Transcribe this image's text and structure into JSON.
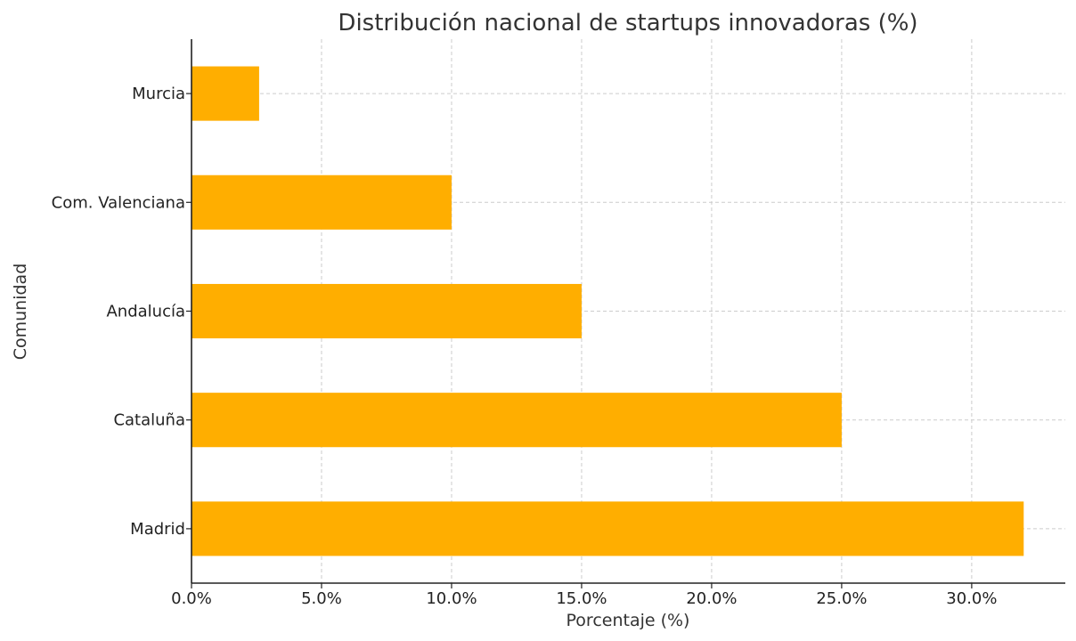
{
  "chart_data": {
    "type": "bar",
    "orientation": "horizontal",
    "title": "Distribución nacional de startups innovadoras (%)",
    "xlabel": "Porcentaje (%)",
    "ylabel": "Comunidad",
    "categories": [
      "Madrid",
      "Cataluña",
      "Andalucía",
      "Com. Valenciana",
      "Murcia"
    ],
    "values": [
      32.0,
      25.0,
      15.0,
      10.0,
      2.6
    ],
    "xlim": [
      0,
      33.6
    ],
    "xticks": [
      0,
      5,
      10,
      15,
      20,
      25,
      30
    ],
    "xtick_labels": [
      "0.0%",
      "5.0%",
      "10.0%",
      "15.0%",
      "20.0%",
      "25.0%",
      "30.0%"
    ],
    "bar_color": "#FFAE00",
    "grid": true,
    "grid_style": "dashed"
  }
}
